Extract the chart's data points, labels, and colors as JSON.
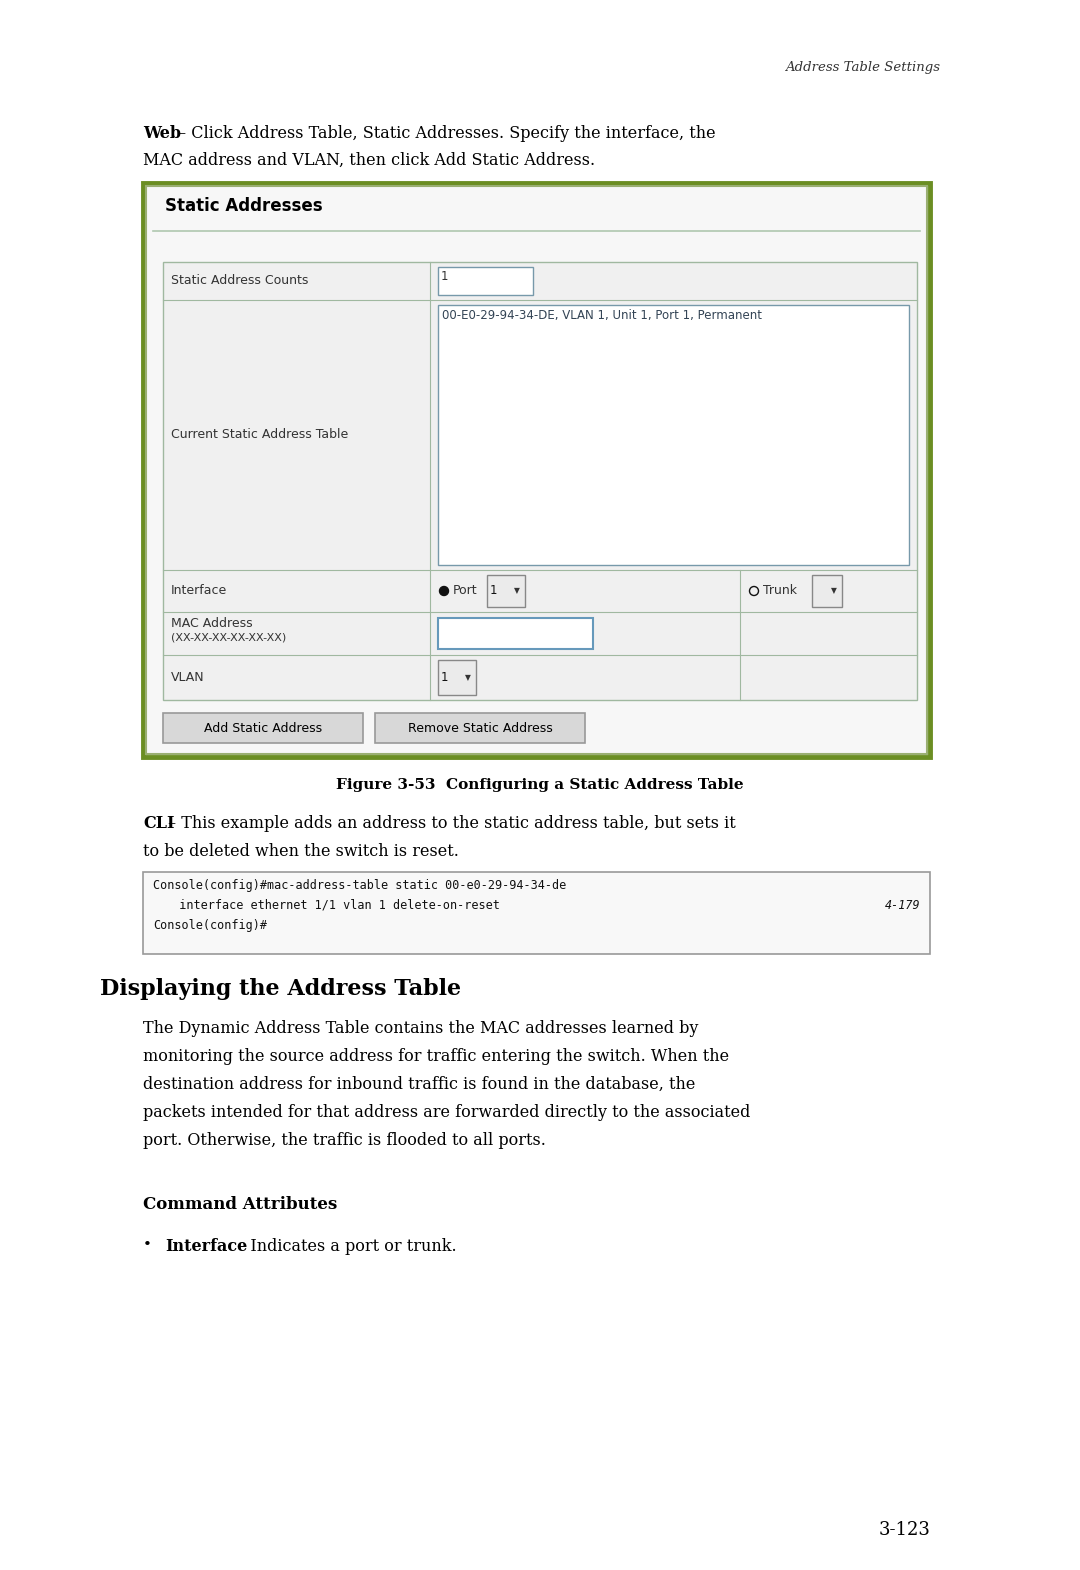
{
  "bg_color": "#ffffff",
  "page_width": 10.8,
  "page_height": 15.7,
  "header_text": "Address Table Settings",
  "header_font_size": 9.5,
  "web_font_size": 11.5,
  "figure_caption": "Figure 3-53  Configuring a Static Address Table",
  "figure_caption_font_size": 11,
  "cli_font_size": 11.5,
  "console_lines": [
    "Console(config)#mac-address-table static 00-e0-29-94-34-de",
    "  interface ethernet 1/1 vlan 1 delete-on-reset",
    "Console(config)#"
  ],
  "console_ref": "4-179",
  "console_font_size": 8.5,
  "section_title": "Displaying the Address Table",
  "section_title_font_size": 16,
  "body_font_size": 11.5,
  "cmd_attr_title": "Command Attributes",
  "cmd_attr_font_size": 12,
  "bullet_bold": "Interface",
  "bullet_text": " – Indicates a port or trunk.",
  "bullet_font_size": 11.5,
  "page_number": "3-123",
  "page_number_font_size": 13,
  "gui_border_outer": "#6b8e23",
  "gui_border_inner": "#9aaf72",
  "gui_title": "Static Addresses",
  "gui_title_font_size": 12,
  "gui_table_border": "#a0b8a0",
  "gui_entry_bg": "#ffffff",
  "gui_entry_border": "#7799aa"
}
